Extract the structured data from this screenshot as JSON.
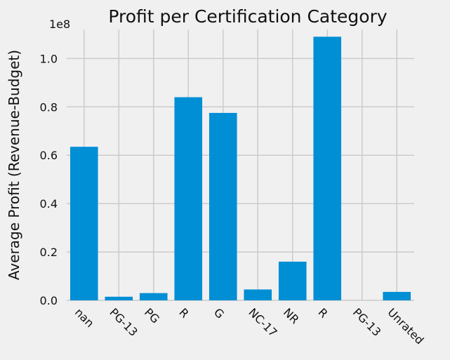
{
  "chart_data": {
    "type": "bar",
    "title": "Profit per Certification Category",
    "xlabel": "",
    "ylabel": "Average Profit (Revenue-Budget)",
    "offset_label": "1e8",
    "categories": [
      "nan",
      "PG-13",
      "PG",
      "R",
      "G",
      "NC-17",
      "NR",
      "R",
      "PG-13",
      "Unrated"
    ],
    "values": [
      63500000,
      1500000,
      3000000,
      84000000,
      77500000,
      4500000,
      16000000,
      109000000,
      0,
      3500000
    ],
    "ylim": [
      0,
      112000000
    ],
    "yticks": [
      0,
      20000000,
      40000000,
      60000000,
      80000000,
      100000000
    ],
    "ytick_labels": [
      "0.0",
      "0.2",
      "0.4",
      "0.6",
      "0.8",
      "1.0"
    ],
    "grid": true,
    "bar_color": "#008fd5",
    "background": "#f0f0f0"
  }
}
